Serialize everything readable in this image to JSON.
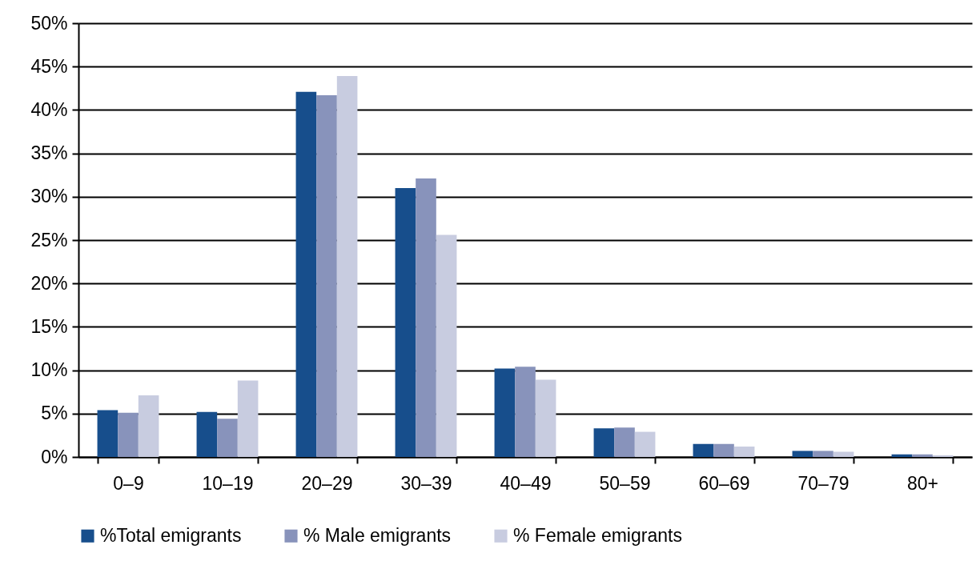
{
  "chart_data": {
    "type": "bar",
    "categories": [
      "0–9",
      "10–19",
      "20–29",
      "30–39",
      "40–49",
      "50–59",
      "60–69",
      "70–79",
      "80+"
    ],
    "series": [
      {
        "name": "%Total emigrants",
        "color": "#174e8c",
        "values": [
          5.4,
          5.2,
          42.1,
          31.0,
          10.2,
          3.3,
          1.5,
          0.7,
          0.3
        ]
      },
      {
        "name": "% Male emigrants",
        "color": "#8893bb",
        "values": [
          5.1,
          4.4,
          41.7,
          32.1,
          10.4,
          3.4,
          1.5,
          0.7,
          0.3
        ]
      },
      {
        "name": "% Female emigrants",
        "color": "#c8cce0",
        "values": [
          7.1,
          8.8,
          43.9,
          25.6,
          8.9,
          2.9,
          1.2,
          0.6,
          0.2
        ]
      }
    ],
    "ylim": [
      0,
      50
    ],
    "yticks": [
      {
        "value": 0,
        "label": "0%"
      },
      {
        "value": 5,
        "label": "5%"
      },
      {
        "value": 10,
        "label": "10%"
      },
      {
        "value": 15,
        "label": "15%"
      },
      {
        "value": 20,
        "label": "20%"
      },
      {
        "value": 25,
        "label": "25%"
      },
      {
        "value": 30,
        "label": "30%"
      },
      {
        "value": 35,
        "label": "35%"
      },
      {
        "value": 40,
        "label": "40%"
      },
      {
        "value": 45,
        "label": "45%"
      },
      {
        "value": 50,
        "label": "50%"
      }
    ],
    "grid": "y",
    "legend": "bottom"
  }
}
